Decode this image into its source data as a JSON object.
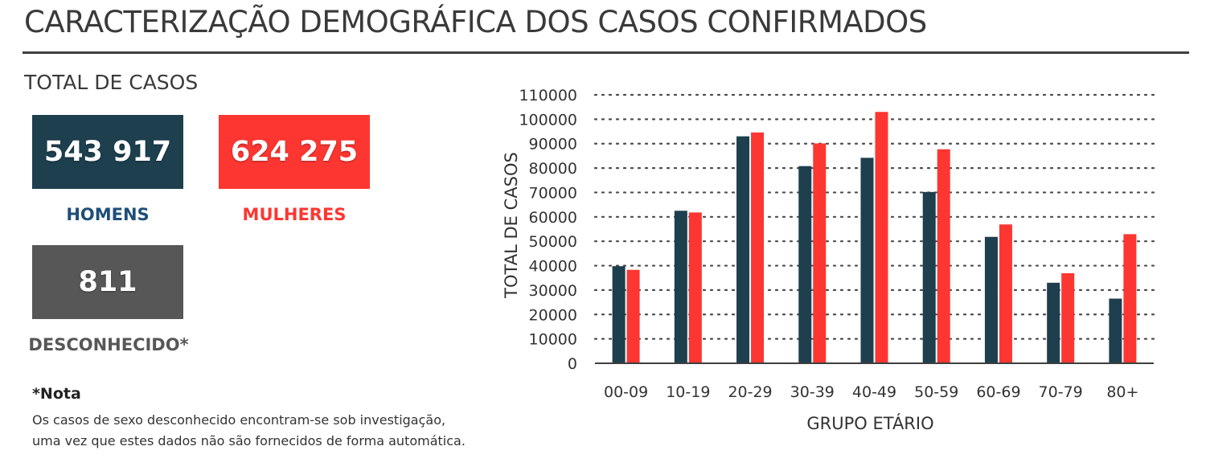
{
  "page": {
    "title": "CARACTERIZAÇÃO DEMOGRÁFICA DOS CASOS CONFIRMADOS",
    "subtitle": "TOTAL DE CASOS"
  },
  "totals": {
    "men": {
      "value": "543 917",
      "label": "HOMENS",
      "color": "#1d3f4e"
    },
    "women": {
      "value": "624 275",
      "label": "MULHERES",
      "color": "#fd3631"
    },
    "unknown": {
      "value": "811",
      "label": "DESCONHECIDO*",
      "color": "#575757"
    }
  },
  "note": {
    "title": "*Nota",
    "line1": "Os casos de sexo desconhecido encontram-se sob investigação,",
    "line2": "uma vez que estes dados não são fornecidos de forma automática."
  },
  "chart_data": {
    "type": "bar",
    "categories": [
      "00-09",
      "10-19",
      "20-29",
      "30-39",
      "40-49",
      "50-59",
      "60-69",
      "70-79",
      "80+"
    ],
    "series": [
      {
        "values": [
          39800,
          62500,
          93000,
          80800,
          84200,
          70200,
          51800,
          33000,
          26500
        ],
        "color": "#1d3f4e"
      },
      {
        "values": [
          38300,
          61800,
          94600,
          90100,
          103000,
          87700,
          56900,
          36900,
          52900
        ],
        "color": "#fd3631"
      }
    ],
    "xlabel": "GRUPO ETÁRIO",
    "ylabel": "TOTAL DE CASOS",
    "ylim": [
      0,
      110000
    ],
    "yticks": [
      "0",
      "10000",
      "20000",
      "30000",
      "40000",
      "50000",
      "60000",
      "70000",
      "80000",
      "90000",
      "100000",
      "110000"
    ],
    "grid": true,
    "legend": "none"
  }
}
